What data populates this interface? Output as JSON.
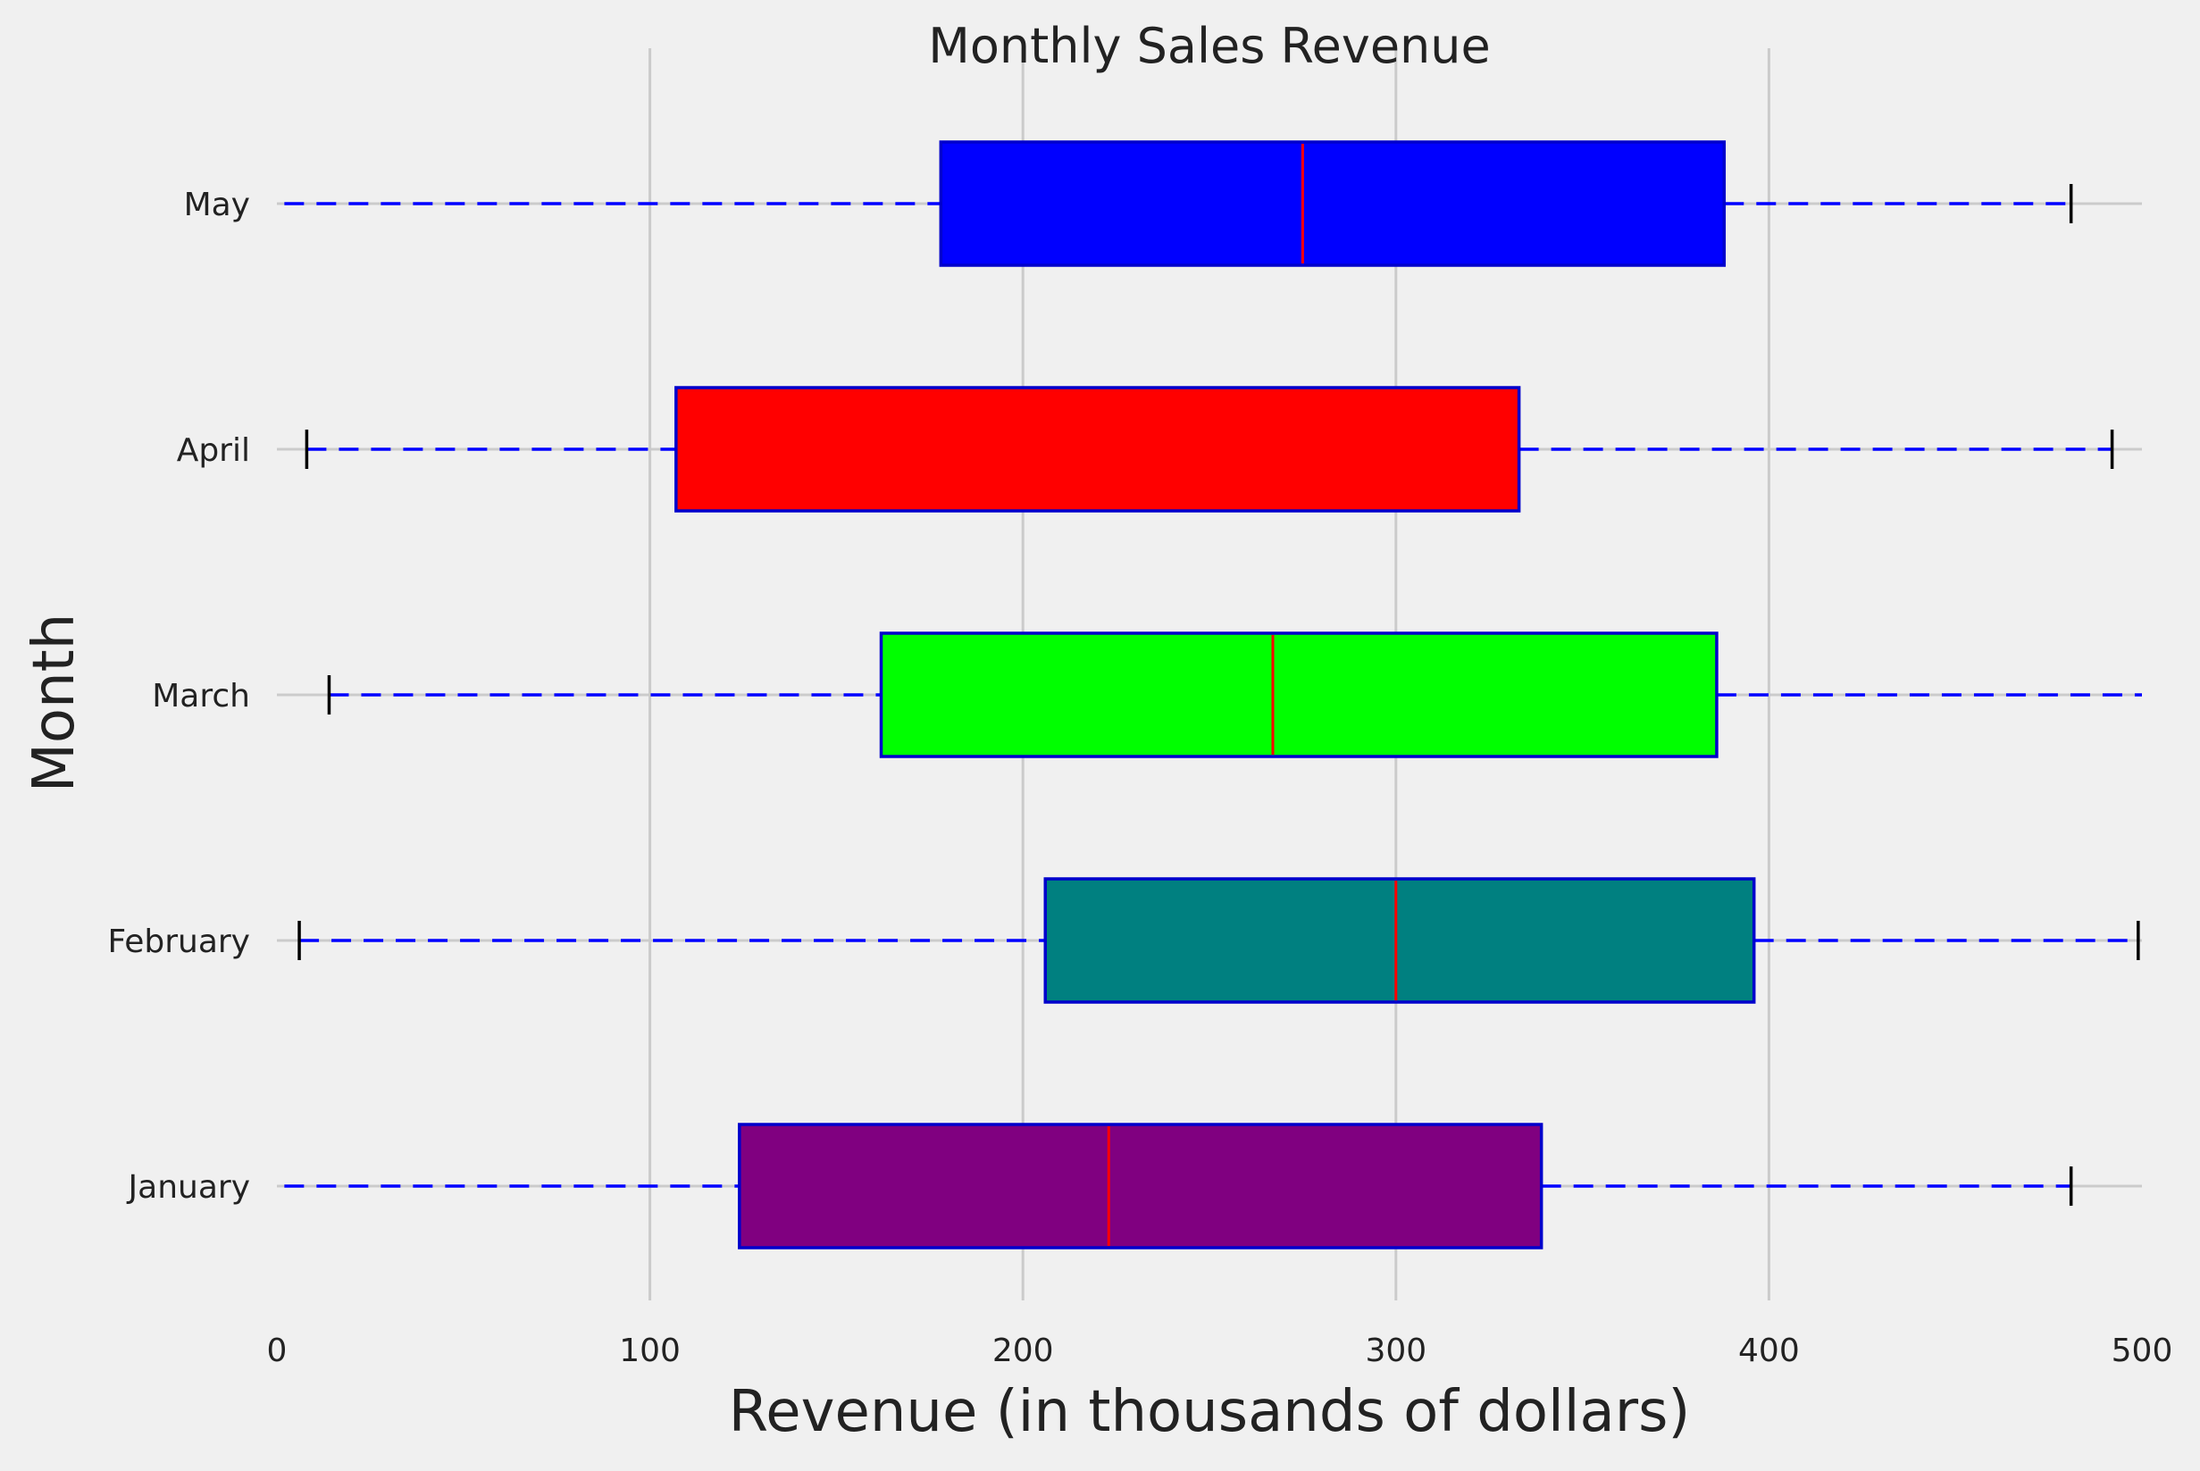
{
  "chart_data": {
    "type": "boxplot",
    "orientation": "horizontal",
    "title": "Monthly Sales Revenue",
    "xlabel": "Revenue (in thousands of dollars)",
    "ylabel": "Month",
    "xlim": [
      0,
      500
    ],
    "xticks": [
      "0",
      "100",
      "200",
      "300",
      "400",
      "500"
    ],
    "grid": "vertical",
    "categories": [
      "January",
      "February",
      "March",
      "April",
      "May"
    ],
    "series": [
      {
        "category": "January",
        "whisker_low": 2,
        "q1": 124,
        "median": 223,
        "q3": 339,
        "whisker_high": 481,
        "low_cap": false,
        "high_cap": true,
        "color": "#800080"
      },
      {
        "category": "February",
        "whisker_low": 6,
        "q1": 206,
        "median": 300,
        "q3": 396,
        "whisker_high": 499,
        "low_cap": true,
        "high_cap": true,
        "color": "#008080"
      },
      {
        "category": "March",
        "whisker_low": 14,
        "q1": 162,
        "median": 267,
        "q3": 386,
        "whisker_high": 500,
        "low_cap": true,
        "high_cap": false,
        "color": "#00ff00"
      },
      {
        "category": "April",
        "whisker_low": 8,
        "q1": 107,
        "median": 236,
        "q3": 333,
        "whisker_high": 492,
        "low_cap": true,
        "high_cap": true,
        "color": "#ff0000"
      },
      {
        "category": "May",
        "whisker_low": 2,
        "q1": 178,
        "median": 275,
        "q3": 388,
        "whisker_high": 481,
        "low_cap": false,
        "high_cap": true,
        "color": "#0000ff"
      }
    ],
    "box_edge_color": "#0000cc",
    "median_color": "#ff0000",
    "whisker_color": "#0000ff",
    "cap_color": "#000000",
    "grid_color": "#cbcbcb"
  }
}
